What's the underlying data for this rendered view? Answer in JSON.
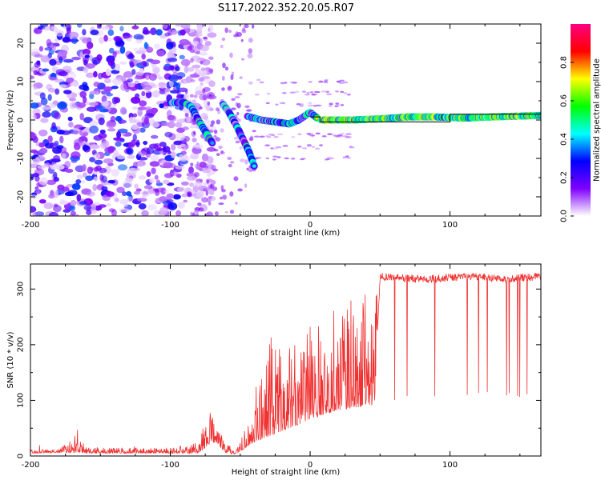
{
  "title": "S117.2022.352.20.05.R07",
  "chart_data": [
    {
      "type": "heatmap",
      "xlabel": "Height of straight line (km)",
      "ylabel": "Frequency (Hz)",
      "xlim": [
        -200,
        165
      ],
      "ylim": [
        -25,
        25
      ],
      "x_ticks": [
        -200,
        -100,
        0,
        100
      ],
      "y_ticks": [
        -20,
        -10,
        0,
        10,
        20
      ],
      "colorbar": {
        "label": "Normalized spectral amplitude",
        "range": [
          0.0,
          1.0
        ],
        "ticks": [
          0.0,
          0.2,
          0.4,
          0.6,
          0.8
        ],
        "colormap": [
          "#ffffff",
          "#7f00ff",
          "#0000ff",
          "#00ffff",
          "#00ff00",
          "#ffff00",
          "#ff0000",
          "#ff0080"
        ]
      },
      "features": {
        "noise_region_km": [
          -200,
          -90
        ],
        "track_segments": [
          {
            "x": [
              -100,
              -90,
              -85,
              -80,
              -75,
              -70
            ],
            "y": [
              4.5,
              4.5,
              3.5,
              0,
              -3,
              -6
            ]
          },
          {
            "x": [
              -62,
              -58,
              -55,
              -52,
              -48,
              -44,
              -40
            ],
            "y": [
              4,
              2,
              0,
              -2,
              -5,
              -8,
              -12
            ]
          },
          {
            "x": [
              -45,
              -35,
              -25,
              -15,
              -8,
              0,
              5
            ],
            "y": [
              1,
              0,
              -0.5,
              -1,
              0,
              2,
              0.5
            ]
          },
          {
            "x": [
              8,
              30,
              50,
              70,
              90,
              110,
              130,
              165
            ],
            "y": [
              0,
              0,
              0.3,
              0.8,
              0.8,
              0.5,
              0.8,
              1.2
            ]
          }
        ],
        "fitted_line": {
          "x": [
            0,
            7,
            7,
            100,
            100,
            165
          ],
          "y": [
            0.8,
            0.8,
            -0.5,
            -0.5,
            1.5,
            1.5
          ]
        }
      }
    },
    {
      "type": "line",
      "xlabel": "Height of straight line (km)",
      "ylabel": "SNR (10 * v/v)",
      "xlim": [
        -200,
        165
      ],
      "ylim": [
        0,
        345
      ],
      "x_ticks": [
        -200,
        -100,
        0,
        100
      ],
      "y_ticks": [
        0,
        100,
        200,
        300
      ],
      "color": "#f03232",
      "series": [
        {
          "x": [
            -200,
            -180,
            -166,
            -160,
            -140,
            -120,
            -100,
            -80,
            -72,
            -68,
            -60,
            -55,
            -50,
            -40,
            -30,
            -20,
            -10,
            0,
            10,
            20,
            30,
            40,
            46,
            50,
            60,
            80,
            100,
            120,
            140,
            165
          ],
          "baseline": [
            5,
            6,
            6,
            5,
            5,
            5,
            5,
            5,
            20,
            25,
            5,
            3,
            8,
            25,
            35,
            45,
            55,
            65,
            75,
            82,
            86,
            90,
            92,
            320,
            318,
            315,
            318,
            320,
            315,
            320
          ],
          "peak": [
            12,
            12,
            48,
            15,
            15,
            15,
            15,
            25,
            85,
            65,
            30,
            10,
            25,
            110,
            230,
            195,
            200,
            235,
            260,
            270,
            285,
            295,
            300,
            340,
            340,
            340,
            340,
            338,
            338,
            340
          ]
        }
      ]
    }
  ]
}
